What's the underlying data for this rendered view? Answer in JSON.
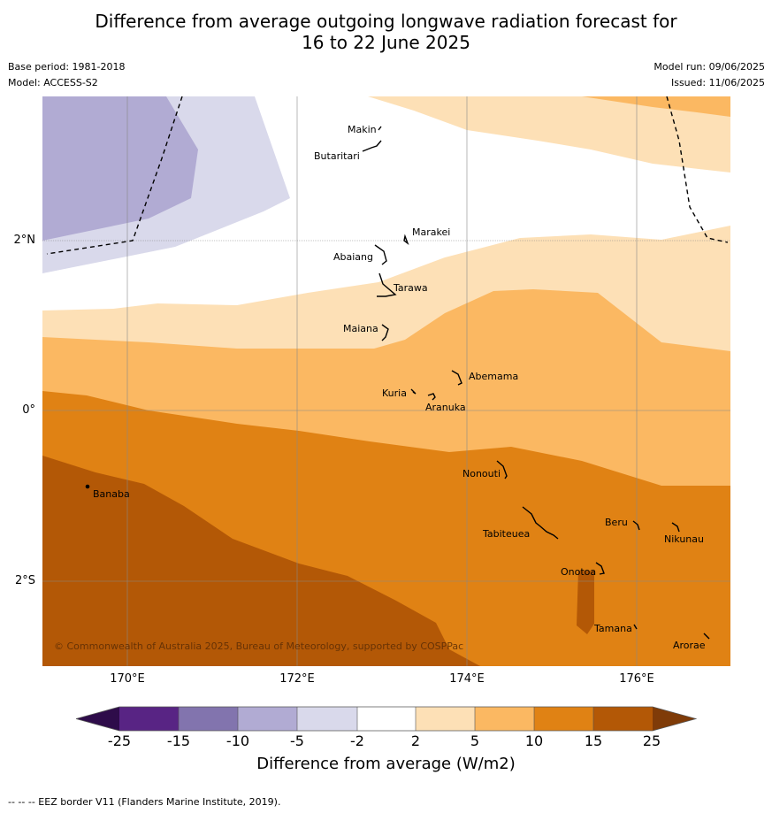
{
  "title_line1": "Difference from average outgoing longwave radiation forecast for",
  "title_line2": "16 to 22 June 2025",
  "base_period": "Base period: 1981-2018",
  "model": "Model: ACCESS-S2",
  "model_run": "Model run: 09/06/2025",
  "issued": "Issued: 11/06/2025",
  "copyright": "© Commonwealth of Australia 2025, Bureau of Meteorology, supported by COSPPac",
  "lat_labels": [
    "2°N",
    "0°",
    "2°S"
  ],
  "lon_labels": [
    "170°E",
    "172°E",
    "174°E",
    "176°E"
  ],
  "places": {
    "makin": "Makin",
    "butaritari": "Butaritari",
    "marakei": "Marakei",
    "abaiang": "Abaiang",
    "tarawa": "Tarawa",
    "maiana": "Maiana",
    "abemama": "Abemama",
    "kuria": "Kuria",
    "aranuka": "Aranuka",
    "nonouti": "Nonouti",
    "banaba": "Banaba",
    "beru": "Beru",
    "tabiteuea": "Tabiteuea",
    "nikunau": "Nikunau",
    "onotoa": "Onotoa",
    "tamana": "Tamana",
    "arorae": "Arorae"
  },
  "colorbar": {
    "ticks": [
      "-25",
      "-15",
      "-10",
      "-5",
      "-2",
      "2",
      "5",
      "10",
      "15",
      "25"
    ],
    "colors": {
      "below_-25": "#2e0c4a",
      "-25_-15": "#582484",
      "-15_-10": "#8274ae",
      "-10_-5": "#b1abd3",
      "-5_-2": "#d9d9eb",
      "-2_2": "#ffffff",
      "2_5": "#fde0b6",
      "5_10": "#fbb862",
      "10_15": "#e08214",
      "15_25": "#b35806",
      "above_25": "#7f3b08"
    },
    "label": "Difference from average (W/m2)"
  },
  "footer": "--  --  -- EEZ border V11 (Flanders Marine Institute, 2019)."
}
